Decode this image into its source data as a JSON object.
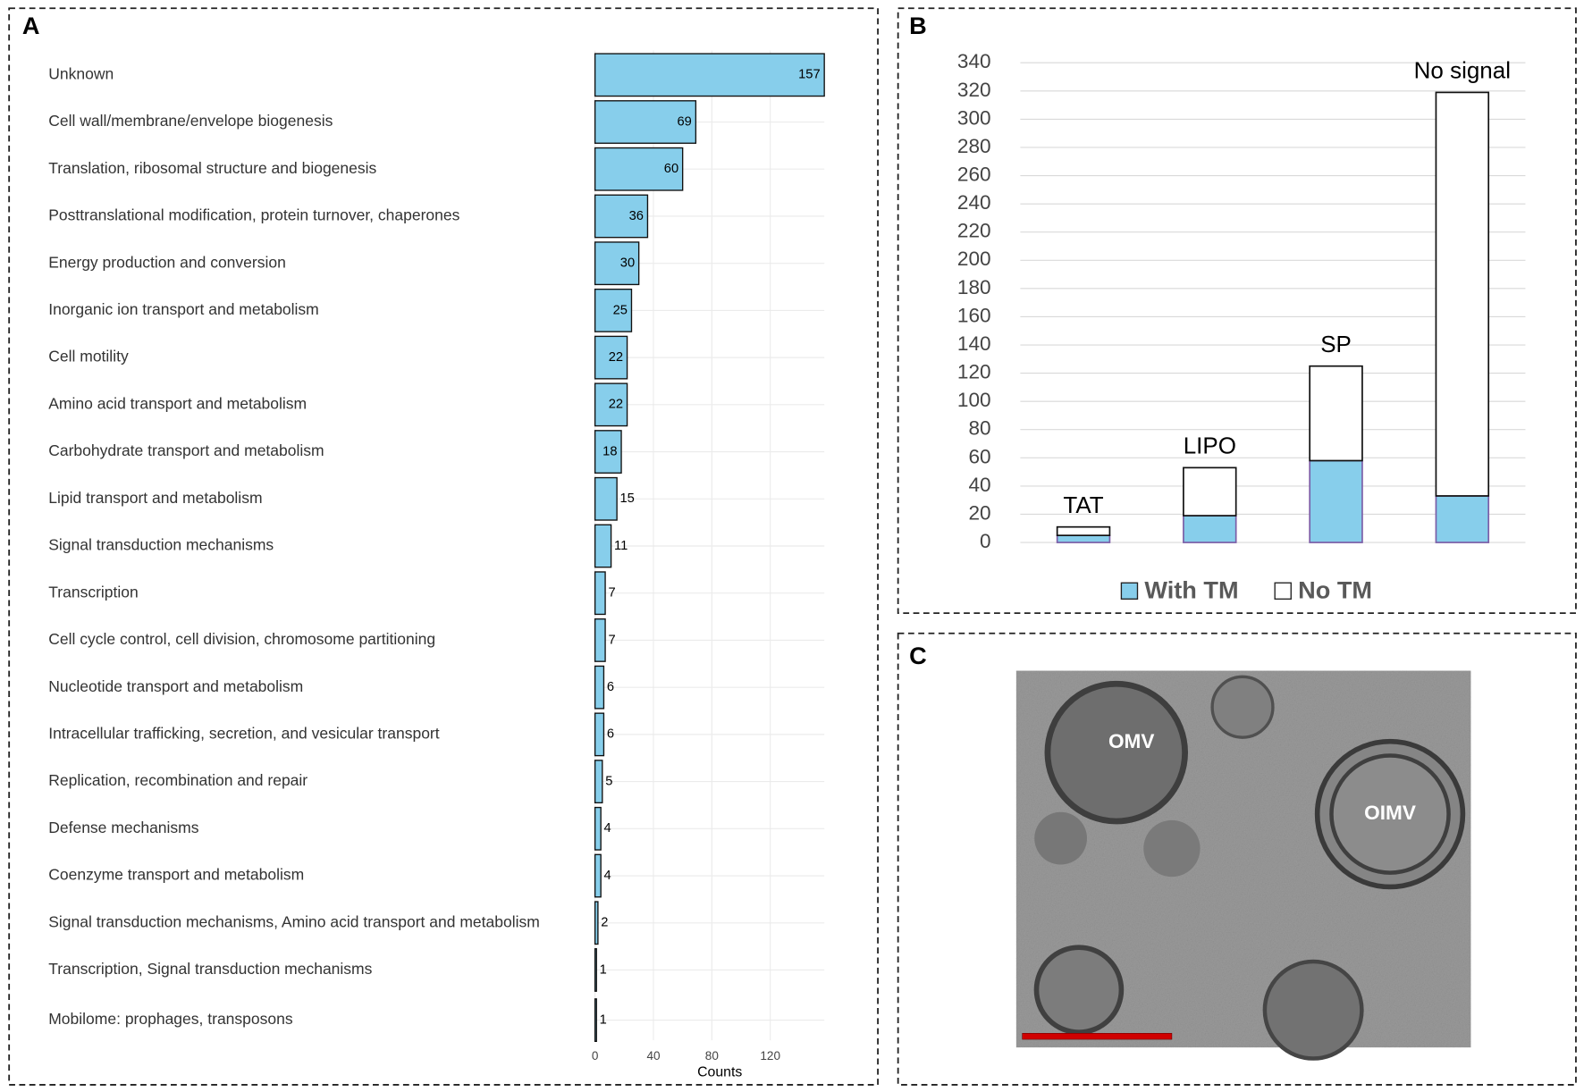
{
  "panels": [
    "A",
    "B",
    "C"
  ],
  "chart_data": [
    {
      "type": "hbar",
      "categories": [
        "Unknown",
        "Cell wall/membrane/envelope biogenesis",
        "Translation, ribosomal structure and biogenesis",
        "Posttranslational modification, protein turnover, chaperones",
        "Energy production and conversion",
        "Inorganic ion transport and metabolism",
        "Cell motility",
        "Amino acid transport and metabolism",
        "Carbohydrate transport and metabolism",
        "Lipid transport and metabolism",
        "Signal transduction mechanisms",
        "Transcription",
        "Cell cycle control, cell division, chromosome partitioning",
        "Nucleotide transport and metabolism",
        "Intracellular trafficking, secretion, and vesicular transport",
        "Replication, recombination and repair",
        "Defense mechanisms",
        "Coenzyme transport and metabolism",
        "Signal transduction mechanisms, Amino acid transport and metabolism",
        "Transcription, Signal transduction mechanisms",
        "Mobilome: prophages, transposons"
      ],
      "values": [
        157,
        69,
        60,
        36,
        30,
        25,
        22,
        22,
        18,
        15,
        11,
        7,
        7,
        6,
        6,
        5,
        4,
        4,
        2,
        1,
        1
      ],
      "color": "#87ceeb",
      "xlabel": "Counts",
      "xlim": [
        0,
        157
      ],
      "xticks": [
        0,
        40,
        80,
        120
      ],
      "grid": true
    },
    {
      "type": "stacked_bar",
      "categories": [
        "TAT",
        "LIPO",
        "SP",
        "No signal"
      ],
      "series": [
        {
          "name": "With TM",
          "color": "#87ceeb",
          "values": [
            5,
            19,
            58,
            33
          ]
        },
        {
          "name": "No TM",
          "color": "#ffffff",
          "values": [
            6,
            34,
            67,
            286
          ]
        }
      ],
      "ylim": [
        0,
        340
      ],
      "yticks": [
        0,
        20,
        40,
        60,
        80,
        100,
        120,
        140,
        160,
        180,
        200,
        220,
        240,
        260,
        280,
        300,
        320,
        340
      ],
      "grid": true,
      "legend": "bottom"
    }
  ],
  "image": {
    "labels": [
      "OMV",
      "OIMV"
    ]
  }
}
